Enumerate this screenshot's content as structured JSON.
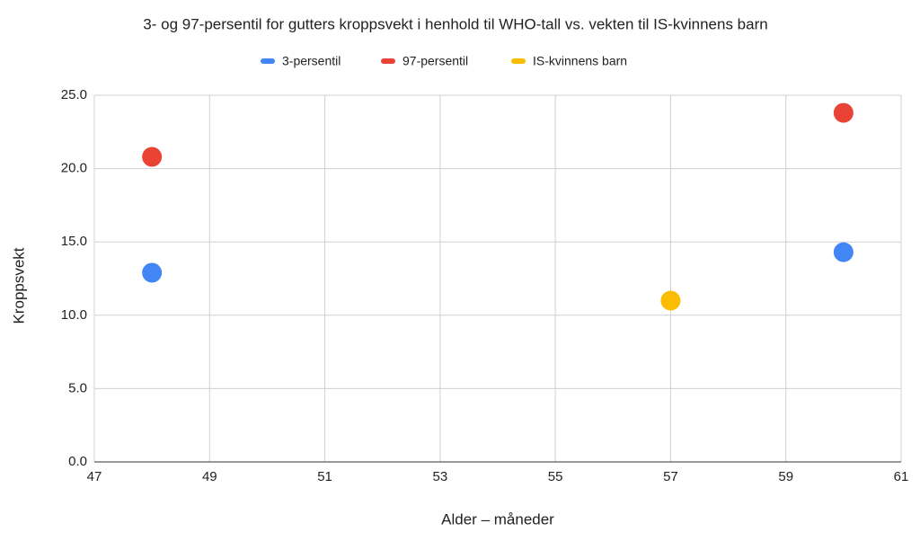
{
  "chart_data": {
    "type": "scatter",
    "title": "3- og 97-persentil for gutters kroppsvekt i henhold til WHO-tall vs. vekten til IS-kvinnens barn",
    "x_label": "Alder – måneder",
    "y_label": "Kroppsvekt",
    "series": [
      {
        "name": "3-persentil",
        "color": "#4285f4",
        "x": [
          48,
          60
        ],
        "values": [
          12.9,
          14.3
        ]
      },
      {
        "name": "97-persentil",
        "color": "#ea4335",
        "x": [
          48,
          60
        ],
        "values": [
          20.8,
          23.8
        ]
      },
      {
        "name": "IS-kvinnens barn",
        "color": "#fbbc04",
        "x": [
          57
        ],
        "values": [
          11.0
        ]
      }
    ],
    "xlim": [
      47,
      61
    ],
    "xticks": [
      47,
      49,
      51,
      53,
      55,
      57,
      59,
      61
    ],
    "ylim": [
      0,
      25
    ],
    "yticks": [
      {
        "value": 0,
        "label": "0.0"
      },
      {
        "value": 5,
        "label": "5.0"
      },
      {
        "value": 10,
        "label": "10.0"
      },
      {
        "value": 15,
        "label": "15.0"
      },
      {
        "value": 20,
        "label": "20.0"
      },
      {
        "value": 25,
        "label": "25.0"
      }
    ],
    "grid": true,
    "legend": "top"
  }
}
